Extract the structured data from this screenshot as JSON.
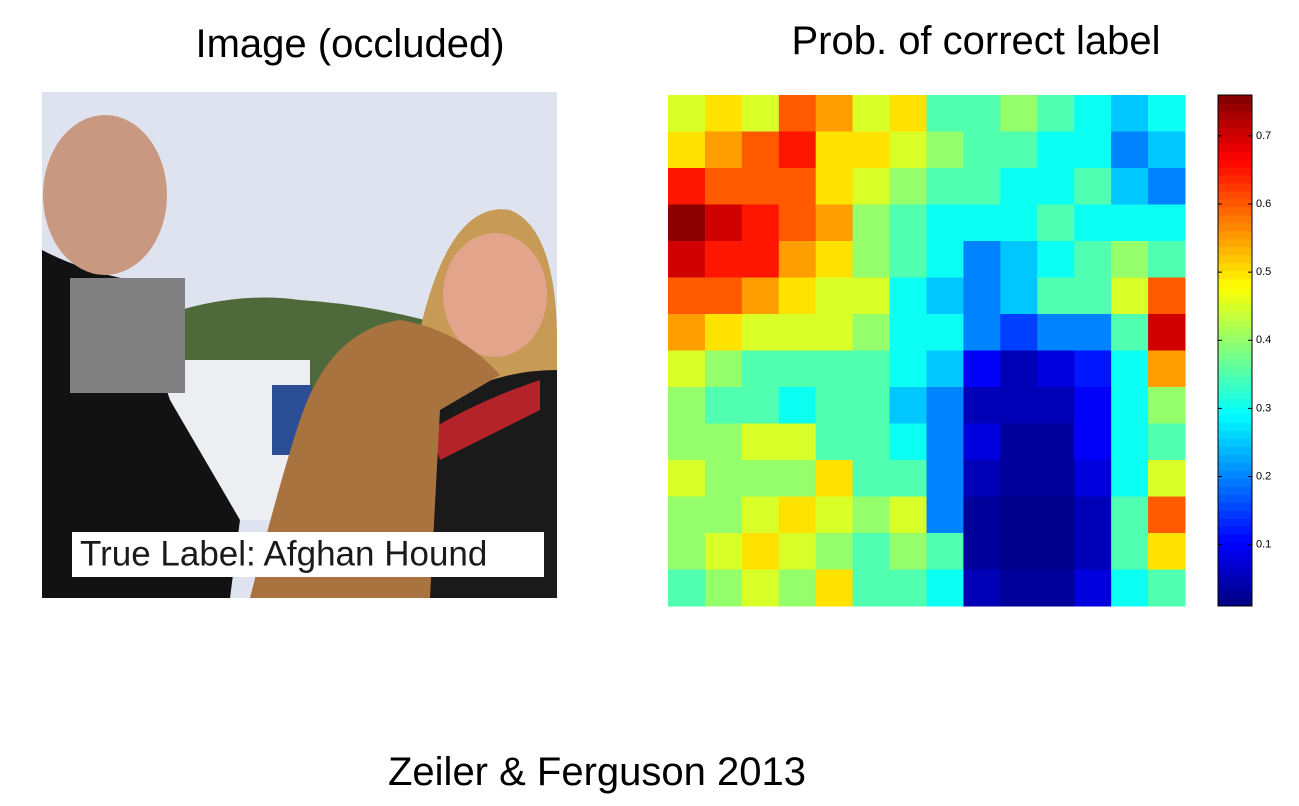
{
  "image_panel": {
    "title": "Image (occluded)",
    "label": "True Label: Afghan Hound"
  },
  "chart_data": {
    "type": "heatmap",
    "title": "Prob. of correct label",
    "colormap": "jet",
    "zlim": [
      0.01,
      0.76
    ],
    "zticks": [
      0.1,
      0.2,
      0.3,
      0.4,
      0.5,
      0.6,
      0.7
    ],
    "z": [
      [
        0.45,
        0.5,
        0.45,
        0.6,
        0.55,
        0.45,
        0.5,
        0.35,
        0.35,
        0.4,
        0.35,
        0.3,
        0.25,
        0.3
      ],
      [
        0.5,
        0.55,
        0.6,
        0.65,
        0.5,
        0.5,
        0.45,
        0.4,
        0.35,
        0.35,
        0.3,
        0.3,
        0.2,
        0.25
      ],
      [
        0.65,
        0.6,
        0.6,
        0.6,
        0.5,
        0.45,
        0.4,
        0.35,
        0.35,
        0.3,
        0.3,
        0.35,
        0.25,
        0.2
      ],
      [
        0.75,
        0.7,
        0.65,
        0.6,
        0.55,
        0.4,
        0.35,
        0.3,
        0.3,
        0.3,
        0.35,
        0.3,
        0.3,
        0.3
      ],
      [
        0.7,
        0.65,
        0.65,
        0.55,
        0.5,
        0.4,
        0.35,
        0.3,
        0.2,
        0.25,
        0.3,
        0.35,
        0.4,
        0.35
      ],
      [
        0.6,
        0.6,
        0.55,
        0.5,
        0.45,
        0.45,
        0.3,
        0.25,
        0.2,
        0.25,
        0.35,
        0.35,
        0.45,
        0.6
      ],
      [
        0.55,
        0.5,
        0.45,
        0.45,
        0.45,
        0.4,
        0.3,
        0.3,
        0.2,
        0.15,
        0.2,
        0.2,
        0.35,
        0.7
      ],
      [
        0.45,
        0.4,
        0.35,
        0.35,
        0.35,
        0.35,
        0.3,
        0.25,
        0.1,
        0.05,
        0.08,
        0.12,
        0.3,
        0.55
      ],
      [
        0.4,
        0.35,
        0.35,
        0.3,
        0.35,
        0.35,
        0.25,
        0.2,
        0.05,
        0.05,
        0.05,
        0.1,
        0.3,
        0.4
      ],
      [
        0.4,
        0.4,
        0.45,
        0.45,
        0.35,
        0.35,
        0.3,
        0.2,
        0.08,
        0.03,
        0.03,
        0.1,
        0.3,
        0.35
      ],
      [
        0.45,
        0.4,
        0.4,
        0.4,
        0.5,
        0.35,
        0.35,
        0.2,
        0.05,
        0.03,
        0.03,
        0.08,
        0.3,
        0.45
      ],
      [
        0.4,
        0.4,
        0.45,
        0.5,
        0.45,
        0.4,
        0.45,
        0.2,
        0.03,
        0.02,
        0.02,
        0.05,
        0.35,
        0.6
      ],
      [
        0.4,
        0.45,
        0.5,
        0.45,
        0.4,
        0.35,
        0.4,
        0.35,
        0.03,
        0.02,
        0.02,
        0.05,
        0.35,
        0.5
      ],
      [
        0.35,
        0.4,
        0.45,
        0.4,
        0.5,
        0.35,
        0.35,
        0.3,
        0.05,
        0.03,
        0.03,
        0.08,
        0.3,
        0.35
      ]
    ]
  },
  "caption": "Zeiler & Ferguson 2013"
}
